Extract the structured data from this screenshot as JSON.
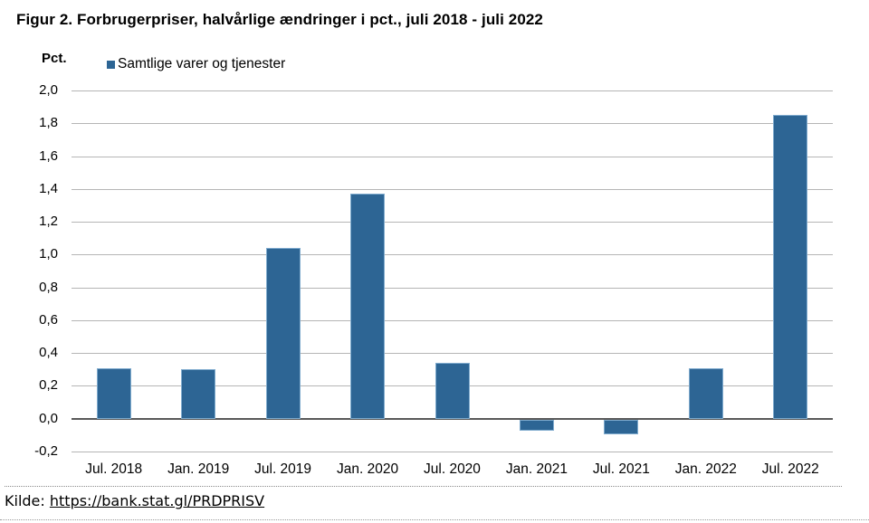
{
  "title": "Figur 2. Forbrugerpriser, halvårlige ændringer i pct., juli 2018 - juli 2022",
  "source": {
    "label": "Kilde:",
    "link_text": "https://bank.stat.gl/PRDPRISV"
  },
  "chart_data": {
    "type": "bar",
    "title": "Figur 2. Forbrugerpriser, halvårlige ændringer i pct., juli 2018 - juli 2022",
    "ylabel": "Pct.",
    "xlabel": "",
    "legend": [
      "Samtlige varer og tjenester"
    ],
    "legend_position": "top-left",
    "categories": [
      "Jul. 2018",
      "Jan. 2019",
      "Jul. 2019",
      "Jan. 2020",
      "Jul. 2020",
      "Jan. 2021",
      "Jul. 2021",
      "Jan. 2022",
      "Jul. 2022"
    ],
    "values": [
      0.31,
      0.3,
      1.04,
      1.37,
      0.34,
      -0.07,
      -0.09,
      0.31,
      1.85
    ],
    "ylim": [
      -0.2,
      2.0
    ],
    "ytick_values": [
      2.0,
      1.8,
      1.6,
      1.4,
      1.2,
      1.0,
      0.8,
      0.6,
      0.4,
      0.2,
      0.0,
      -0.2
    ],
    "ytick_labels": [
      "2,0",
      "1,8",
      "1,6",
      "1,4",
      "1,2",
      "1,0",
      "0,8",
      "0,6",
      "0,4",
      "0,2",
      "0,0",
      "-0,2"
    ],
    "grid": true,
    "bar_color": "#2d6594",
    "bar_border_color": "#7fabce",
    "grid_color": "#b5b5b5",
    "zero_line_color": "#595959"
  }
}
